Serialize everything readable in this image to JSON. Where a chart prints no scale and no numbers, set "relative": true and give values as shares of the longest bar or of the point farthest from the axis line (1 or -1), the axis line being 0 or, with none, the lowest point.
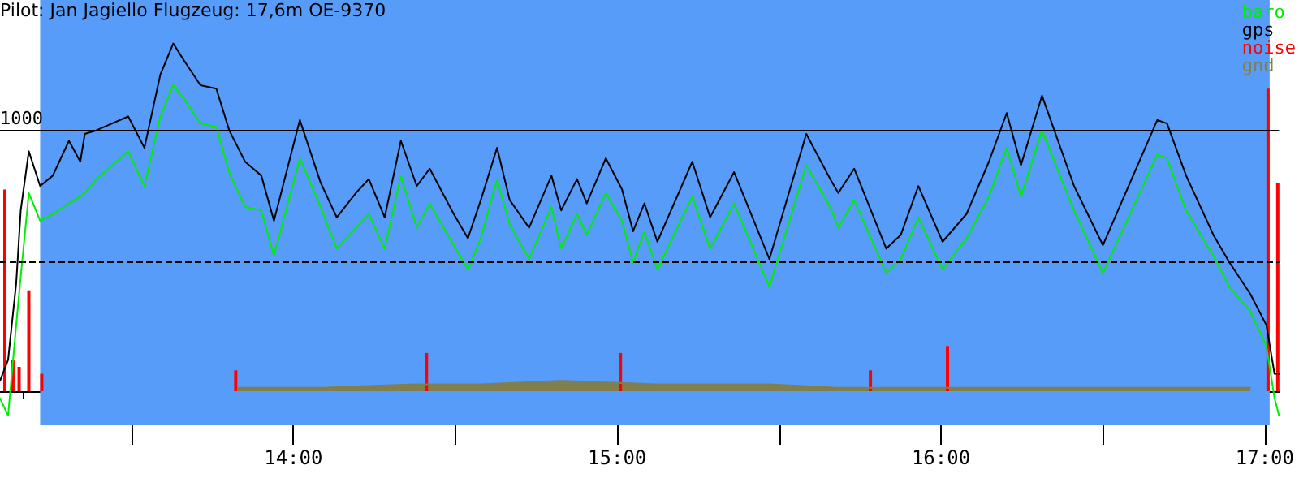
{
  "chart_data": {
    "type": "line",
    "title": "Pilot: Jan Jagiello Flugzeug: 17,6m OE-9370",
    "relative": true,
    "tick_labels": "x",
    "grid": false,
    "marker": "none",
    "legend": "top right",
    "xlim": [
      13.094,
      17.044
    ],
    "xticks": [
      {
        "value": 13.167,
        "label": null
      },
      {
        "value": 13.25,
        "label": null
      },
      {
        "value": 13.333,
        "label": null
      },
      {
        "value": 13.417,
        "label": null
      },
      {
        "value": 13.5,
        "label": null
      },
      {
        "value": 13.583,
        "label": null
      },
      {
        "value": 13.667,
        "label": null
      },
      {
        "value": 13.75,
        "label": null
      },
      {
        "value": 13.833,
        "label": null
      },
      {
        "value": 13.917,
        "label": null
      },
      {
        "value": 14,
        "label": "14:00"
      },
      {
        "value": 14.083,
        "label": null
      },
      {
        "value": 14.167,
        "label": null
      },
      {
        "value": 14.25,
        "label": null
      },
      {
        "value": 14.333,
        "label": null
      },
      {
        "value": 14.417,
        "label": null
      },
      {
        "value": 14.5,
        "label": null
      },
      {
        "value": 14.583,
        "label": null
      },
      {
        "value": 14.667,
        "label": null
      },
      {
        "value": 14.75,
        "label": null
      },
      {
        "value": 14.833,
        "label": null
      },
      {
        "value": 14.917,
        "label": null
      },
      {
        "value": 15,
        "label": "15:00"
      },
      {
        "value": 15.083,
        "label": null
      },
      {
        "value": 15.167,
        "label": null
      },
      {
        "value": 15.25,
        "label": null
      },
      {
        "value": 15.333,
        "label": null
      },
      {
        "value": 15.417,
        "label": null
      },
      {
        "value": 15.5,
        "label": null
      },
      {
        "value": 15.583,
        "label": null
      },
      {
        "value": 15.667,
        "label": null
      },
      {
        "value": 15.75,
        "label": null
      },
      {
        "value": 15.833,
        "label": null
      },
      {
        "value": 15.917,
        "label": null
      },
      {
        "value": 16,
        "label": "16:00"
      },
      {
        "value": 16.083,
        "label": null
      },
      {
        "value": 16.167,
        "label": null
      },
      {
        "value": 16.25,
        "label": null
      },
      {
        "value": 16.333,
        "label": null
      },
      {
        "value": 16.417,
        "label": null
      },
      {
        "value": 16.5,
        "label": null
      },
      {
        "value": 16.583,
        "label": null
      },
      {
        "value": 16.667,
        "label": null
      },
      {
        "value": 16.75,
        "label": null
      },
      {
        "value": 16.833,
        "label": null
      },
      {
        "value": 16.917,
        "label": null
      },
      {
        "value": 17,
        "label": "17:00"
      }
    ],
    "x": [
      13.094,
      13.119,
      13.144,
      13.158,
      13.183,
      13.218,
      13.257,
      13.307,
      13.342,
      13.356,
      13.391,
      13.49,
      13.54,
      13.589,
      13.629,
      13.663,
      13.713,
      13.762,
      13.802,
      13.851,
      13.901,
      13.94,
      14.02,
      14.084,
      14.134,
      14.193,
      14.233,
      14.282,
      14.332,
      14.381,
      14.421,
      14.495,
      14.539,
      14.579,
      14.629,
      14.668,
      14.728,
      14.797,
      14.827,
      14.876,
      14.906,
      14.965,
      15.015,
      15.049,
      15.084,
      15.124,
      15.232,
      15.287,
      15.361,
      15.47,
      15.584,
      15.658,
      15.683,
      15.732,
      15.831,
      15.876,
      15.93,
      16.005,
      16.079,
      16.148,
      16.203,
      16.247,
      16.312,
      16.411,
      16.5,
      16.668,
      16.698,
      16.757,
      16.841,
      16.891,
      16.955,
      17.005,
      17.03,
      17.044
    ],
    "series": [
      {
        "name": "baro",
        "color": "#00ee00",
        "values": [
          -0.02,
          -0.07,
          0.19,
          0.33,
          0.57,
          0.49,
          0.51,
          0.54,
          0.56,
          0.57,
          0.61,
          0.69,
          0.59,
          0.79,
          0.88,
          0.84,
          0.77,
          0.76,
          0.63,
          0.53,
          0.52,
          0.39,
          0.67,
          0.53,
          0.41,
          0.47,
          0.51,
          0.41,
          0.62,
          0.47,
          0.54,
          0.42,
          0.35,
          0.44,
          0.61,
          0.48,
          0.38,
          0.53,
          0.41,
          0.51,
          0.45,
          0.57,
          0.49,
          0.37,
          0.46,
          0.35,
          0.56,
          0.41,
          0.54,
          0.3,
          0.65,
          0.53,
          0.47,
          0.55,
          0.34,
          0.38,
          0.5,
          0.35,
          0.44,
          0.56,
          0.7,
          0.56,
          0.75,
          0.52,
          0.34,
          0.68,
          0.67,
          0.52,
          0.39,
          0.3,
          0.23,
          0.13,
          -0.02,
          -0.07
        ]
      },
      {
        "name": "gps",
        "color": "#000000",
        "values": [
          0.03,
          0.09,
          0.31,
          0.52,
          0.69,
          0.59,
          0.62,
          0.72,
          0.66,
          0.74,
          0.75,
          0.79,
          0.7,
          0.91,
          1.0,
          0.95,
          0.88,
          0.87,
          0.75,
          0.66,
          0.62,
          0.49,
          0.78,
          0.6,
          0.5,
          0.57,
          0.61,
          0.5,
          0.72,
          0.59,
          0.64,
          0.51,
          0.44,
          0.55,
          0.7,
          0.55,
          0.47,
          0.62,
          0.52,
          0.61,
          0.54,
          0.67,
          0.58,
          0.46,
          0.54,
          0.43,
          0.66,
          0.5,
          0.63,
          0.38,
          0.74,
          0.61,
          0.57,
          0.64,
          0.41,
          0.45,
          0.59,
          0.43,
          0.51,
          0.66,
          0.8,
          0.65,
          0.85,
          0.59,
          0.42,
          0.78,
          0.77,
          0.62,
          0.45,
          0.37,
          0.28,
          0.19,
          0.05,
          0.05
        ]
      },
      {
        "name": "noise",
        "type": "bar",
        "color": "#ff0000",
        "x": [
          13.109,
          13.134,
          13.153,
          13.183,
          13.223,
          13.822,
          14.411,
          15.01,
          15.782,
          16.02,
          17.01,
          17.04
        ],
        "values": [
          0.58,
          0.09,
          0.07,
          0.29,
          0.05,
          0.06,
          0.11,
          0.11,
          0.06,
          0.13,
          0.87,
          0.6
        ]
      },
      {
        "name": "gnd",
        "type": "area",
        "color": "#7f7f50",
        "x": [
          13.829,
          14.084,
          14.381,
          14.579,
          14.827,
          15.124,
          15.47,
          15.683,
          15.93,
          16.203,
          16.5,
          16.757,
          16.955
        ],
        "values": [
          0.01,
          0.01,
          0.02,
          0.02,
          0.03,
          0.02,
          0.02,
          0.01,
          0.01,
          0.01,
          0.01,
          0.01,
          0.01
        ]
      }
    ],
    "annotations": [
      "1000"
    ],
    "ref_lines": [
      {
        "axis": "y",
        "value": 0.75,
        "label": null,
        "color": "#000000",
        "line_style": "solid"
      },
      {
        "axis": "y",
        "value": 0.37,
        "label": null,
        "color": "#000000",
        "line_style": "dashed"
      }
    ],
    "bands": [
      {
        "axis": "x",
        "from": 13.218,
        "to": 17.015,
        "label": null,
        "color": "#579cf9"
      }
    ]
  }
}
